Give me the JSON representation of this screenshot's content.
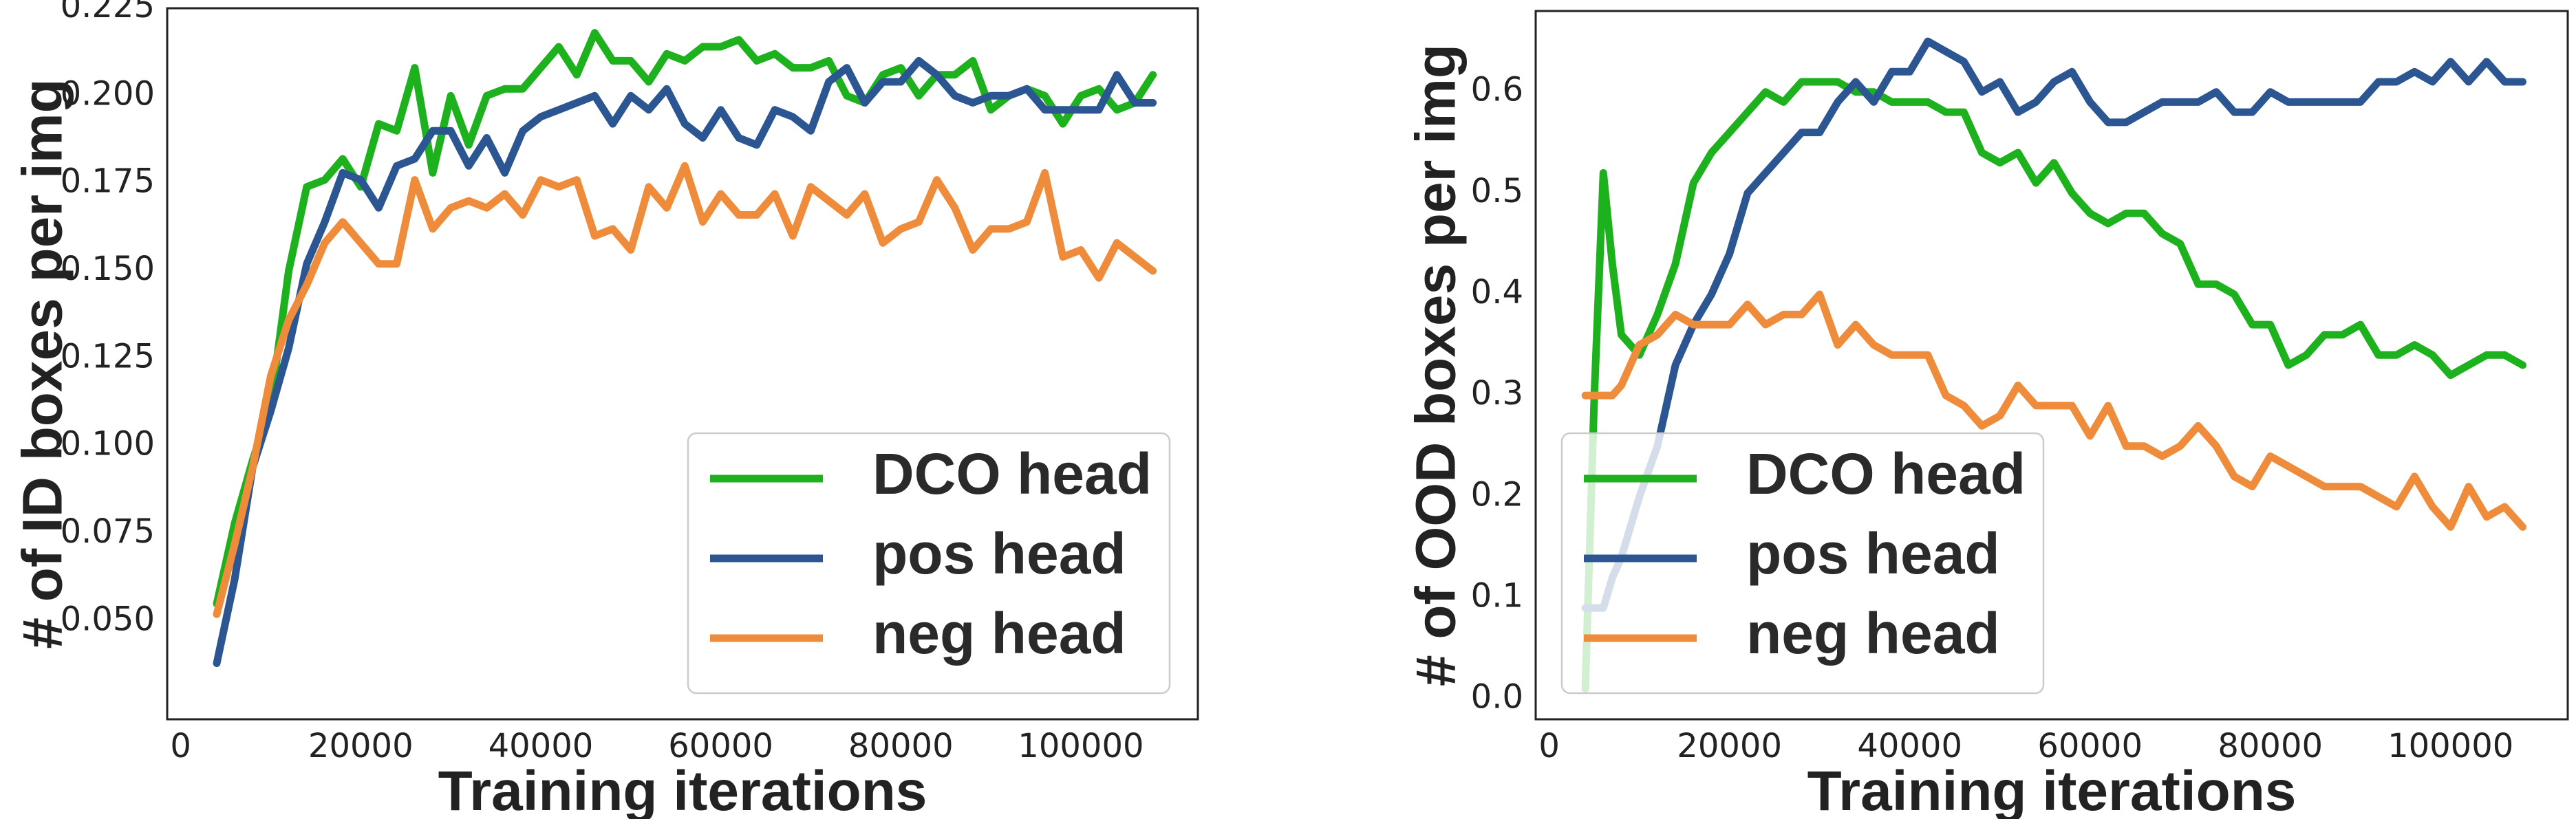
{
  "chart_data": [
    {
      "type": "line",
      "xlabel": "Training iterations",
      "ylabel": "# of ID boxes per img",
      "xlim": [
        -1500,
        113000
      ],
      "ylim": [
        0.022,
        0.225
      ],
      "xticks": [
        0,
        20000,
        40000,
        60000,
        80000,
        100000
      ],
      "xtick_labels": [
        "0",
        "20000",
        "40000",
        "60000",
        "80000",
        "100000"
      ],
      "yticks": [
        0.05,
        0.075,
        0.1,
        0.125,
        0.15,
        0.175,
        0.2,
        0.225
      ],
      "ytick_labels": [
        "0.050",
        "0.075",
        "0.100",
        "0.125",
        "0.150",
        "0.175",
        "0.200",
        "0.225"
      ],
      "grid": false,
      "legend_position": "lower-right",
      "x": [
        4000,
        6000,
        8000,
        10000,
        12000,
        14000,
        16000,
        18000,
        20000,
        22000,
        24000,
        26000,
        28000,
        30000,
        32000,
        34000,
        36000,
        38000,
        40000,
        42000,
        44000,
        46000,
        48000,
        50000,
        52000,
        54000,
        56000,
        58000,
        60000,
        62000,
        64000,
        66000,
        68000,
        70000,
        72000,
        74000,
        76000,
        78000,
        80000,
        82000,
        84000,
        86000,
        88000,
        90000,
        92000,
        94000,
        96000,
        98000,
        100000,
        102000,
        104000,
        106000,
        108000
      ],
      "series": [
        {
          "name": "DCO head",
          "color": "#1db11d",
          "values": [
            0.055,
            0.078,
            0.096,
            0.112,
            0.15,
            0.174,
            0.176,
            0.182,
            0.174,
            0.192,
            0.19,
            0.208,
            0.178,
            0.2,
            0.186,
            0.2,
            0.202,
            0.202,
            0.208,
            0.214,
            0.206,
            0.218,
            0.21,
            0.21,
            0.204,
            0.212,
            0.21,
            0.214,
            0.214,
            0.216,
            0.21,
            0.212,
            0.208,
            0.208,
            0.21,
            0.2,
            0.198,
            0.206,
            0.208,
            0.2,
            0.206,
            0.206,
            0.21,
            0.196,
            0.2,
            0.202,
            0.2,
            0.192,
            0.2,
            0.202,
            0.196,
            0.198,
            0.206
          ]
        },
        {
          "name": "pos head",
          "color": "#2b5692",
          "values": [
            0.038,
            0.062,
            0.094,
            0.11,
            0.128,
            0.152,
            0.164,
            0.178,
            0.176,
            0.168,
            0.18,
            0.182,
            0.19,
            0.19,
            0.18,
            0.188,
            0.178,
            0.19,
            0.194,
            0.196,
            0.198,
            0.2,
            0.192,
            0.2,
            0.196,
            0.202,
            0.192,
            0.188,
            0.196,
            0.188,
            0.186,
            0.196,
            0.194,
            0.19,
            0.204,
            0.208,
            0.198,
            0.204,
            0.204,
            0.21,
            0.206,
            0.2,
            0.198,
            0.2,
            0.2,
            0.202,
            0.196,
            0.196,
            0.196,
            0.196,
            0.206,
            0.198,
            0.198
          ]
        },
        {
          "name": "neg head",
          "color": "#ef8c3c",
          "values": [
            0.052,
            0.072,
            0.094,
            0.12,
            0.136,
            0.146,
            0.158,
            0.164,
            0.158,
            0.152,
            0.152,
            0.176,
            0.162,
            0.168,
            0.17,
            0.168,
            0.172,
            0.166,
            0.176,
            0.174,
            0.176,
            0.16,
            0.162,
            0.156,
            0.174,
            0.168,
            0.18,
            0.164,
            0.172,
            0.166,
            0.166,
            0.172,
            0.16,
            0.174,
            0.17,
            0.166,
            0.172,
            0.158,
            0.162,
            0.164,
            0.176,
            0.168,
            0.156,
            0.162,
            0.162,
            0.164,
            0.178,
            0.154,
            0.156,
            0.148,
            0.158,
            0.154,
            0.15
          ]
        }
      ]
    },
    {
      "type": "line",
      "xlabel": "Training iterations",
      "ylabel": "# of OOD boxes per img",
      "xlim": [
        -1500,
        113000
      ],
      "ylim": [
        -0.02,
        0.68
      ],
      "xticks": [
        0,
        20000,
        40000,
        60000,
        80000,
        100000
      ],
      "xtick_labels": [
        "0",
        "20000",
        "40000",
        "60000",
        "80000",
        "100000"
      ],
      "yticks": [
        0.0,
        0.1,
        0.2,
        0.3,
        0.4,
        0.5,
        0.6
      ],
      "ytick_labels": [
        "0.0",
        "0.1",
        "0.2",
        "0.3",
        "0.4",
        "0.5",
        "0.6"
      ],
      "grid": false,
      "legend_position": "lower-left",
      "x": [
        4000,
        5000,
        6000,
        7000,
        8000,
        10000,
        12000,
        14000,
        16000,
        18000,
        20000,
        22000,
        24000,
        26000,
        28000,
        30000,
        32000,
        34000,
        36000,
        38000,
        40000,
        42000,
        44000,
        46000,
        48000,
        50000,
        52000,
        54000,
        56000,
        58000,
        60000,
        62000,
        64000,
        66000,
        68000,
        70000,
        72000,
        74000,
        76000,
        78000,
        80000,
        82000,
        84000,
        86000,
        88000,
        90000,
        92000,
        94000,
        96000,
        98000,
        100000,
        102000,
        104000,
        106000,
        108000
      ],
      "series": [
        {
          "name": "DCO head",
          "color": "#1db11d",
          "values": [
            0.01,
            0.3,
            0.52,
            0.43,
            0.36,
            0.34,
            0.38,
            0.43,
            0.51,
            0.54,
            0.56,
            0.58,
            0.6,
            0.59,
            0.61,
            0.61,
            0.61,
            0.6,
            0.6,
            0.59,
            0.59,
            0.59,
            0.58,
            0.58,
            0.54,
            0.53,
            0.54,
            0.51,
            0.53,
            0.5,
            0.48,
            0.47,
            0.48,
            0.48,
            0.46,
            0.45,
            0.41,
            0.41,
            0.4,
            0.37,
            0.37,
            0.33,
            0.34,
            0.36,
            0.36,
            0.37,
            0.34,
            0.34,
            0.35,
            0.34,
            0.32,
            0.33,
            0.34,
            0.34,
            0.33
          ]
        },
        {
          "name": "pos head",
          "color": "#2b5692",
          "values": [
            0.09,
            0.09,
            0.09,
            0.12,
            0.14,
            0.2,
            0.25,
            0.33,
            0.37,
            0.4,
            0.44,
            0.5,
            0.52,
            0.54,
            0.56,
            0.56,
            0.59,
            0.61,
            0.59,
            0.62,
            0.62,
            0.65,
            0.64,
            0.63,
            0.6,
            0.61,
            0.58,
            0.59,
            0.61,
            0.62,
            0.59,
            0.57,
            0.57,
            0.58,
            0.59,
            0.59,
            0.59,
            0.6,
            0.58,
            0.58,
            0.6,
            0.59,
            0.59,
            0.59,
            0.59,
            0.59,
            0.61,
            0.61,
            0.62,
            0.61,
            0.63,
            0.61,
            0.63,
            0.61,
            0.61
          ]
        },
        {
          "name": "neg head",
          "color": "#ef8c3c",
          "values": [
            0.3,
            0.3,
            0.3,
            0.3,
            0.31,
            0.35,
            0.36,
            0.38,
            0.37,
            0.37,
            0.37,
            0.39,
            0.37,
            0.38,
            0.38,
            0.4,
            0.35,
            0.37,
            0.35,
            0.34,
            0.34,
            0.34,
            0.3,
            0.29,
            0.27,
            0.28,
            0.31,
            0.29,
            0.29,
            0.29,
            0.26,
            0.29,
            0.25,
            0.25,
            0.24,
            0.25,
            0.27,
            0.25,
            0.22,
            0.21,
            0.24,
            0.23,
            0.22,
            0.21,
            0.21,
            0.21,
            0.2,
            0.19,
            0.22,
            0.19,
            0.17,
            0.21,
            0.18,
            0.19,
            0.17
          ]
        }
      ]
    }
  ]
}
